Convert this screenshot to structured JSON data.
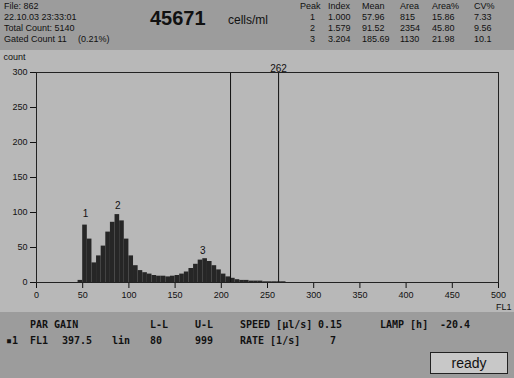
{
  "header": {
    "file": "File: 862",
    "datetime": "22.10.03 23:33:01",
    "total_count": "Total Count: 5140",
    "gated_count": "Gated Count 11",
    "gated_percent": "(0.21%)",
    "concentration": "45671",
    "concentration_unit": "cells/ml",
    "peaks_table": {
      "columns": [
        "Peak",
        "Index",
        "Mean",
        "Area",
        "Area%",
        "CV%"
      ],
      "rows": [
        [
          "1",
          "1.000",
          "57.96",
          "815",
          "15.86",
          "7.33"
        ],
        [
          "2",
          "1.579",
          "91.52",
          "2354",
          "45.80",
          "9.56"
        ],
        [
          "3",
          "3.204",
          "185.69",
          "1130",
          "21.98",
          "10.1"
        ]
      ]
    }
  },
  "chart_data": {
    "type": "histogram",
    "bins": [
      40,
      45,
      50,
      55,
      60,
      65,
      70,
      75,
      80,
      85,
      90,
      95,
      100,
      105,
      110,
      115,
      120,
      125,
      130,
      135,
      140,
      145,
      150,
      155,
      160,
      165,
      170,
      175,
      180,
      185,
      190,
      195,
      200,
      205,
      210,
      215,
      220,
      225,
      230,
      235,
      240,
      245,
      250,
      255,
      260,
      265,
      270,
      275,
      280,
      285,
      290,
      295,
      300
    ],
    "counts": [
      0,
      3,
      82,
      62,
      28,
      38,
      52,
      72,
      86,
      97,
      88,
      62,
      38,
      24,
      17,
      14,
      12,
      10,
      9,
      9,
      8,
      9,
      10,
      12,
      15,
      20,
      26,
      32,
      34,
      30,
      24,
      18,
      12,
      8,
      6,
      4,
      3,
      3,
      2,
      2,
      2,
      1,
      1,
      1,
      1,
      1,
      0,
      0,
      0,
      0,
      0,
      0
    ],
    "color": "#262626",
    "xlim": [
      0,
      500
    ],
    "xticks": [
      0,
      50,
      100,
      150,
      200,
      250,
      300,
      350,
      400,
      450,
      500
    ],
    "ylim": [
      0,
      300
    ],
    "yticks": [
      0,
      50,
      100,
      150,
      200,
      250,
      300
    ],
    "x_label": "FL1",
    "y_label": "count",
    "gate_lines": [
      {
        "value": 210,
        "line_style": "solid"
      },
      {
        "value": 262,
        "line_style": "dashed",
        "label": "262"
      }
    ],
    "peaks": [
      {
        "label": "1",
        "x": 53,
        "count": 88
      },
      {
        "label": "2",
        "x": 88,
        "count": 100
      },
      {
        "label": "3",
        "x": 180,
        "count": 36
      }
    ]
  },
  "footer": {
    "rows": [
      [
        "PAR GAIN",
        "L-L",
        "U-L",
        "SPEED [µl/s]",
        "0.15",
        "LAMP [h]",
        "-20.4"
      ],
      [
        "▪1",
        "FL1",
        "397.5",
        "lin",
        "80",
        "999",
        "RATE [1/s]",
        "7"
      ]
    ],
    "status": "ready"
  }
}
